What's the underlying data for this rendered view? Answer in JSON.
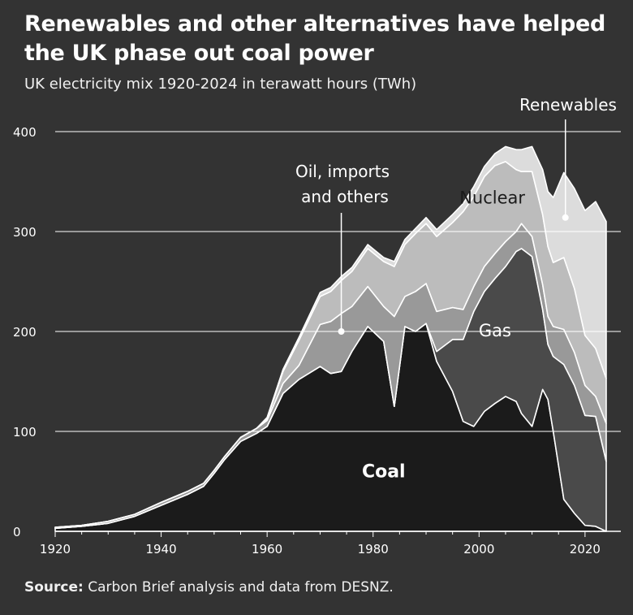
{
  "title_line1": "Renewables and other alternatives have helped",
  "title_line2": "the UK phase out coal power",
  "subtitle": "UK electricity mix 1920-2024 in terawatt hours (TWh)",
  "source_label": "Source:",
  "source_text": " Carbon Brief analysis and data from DESNZ.",
  "colors": {
    "background": "#333333",
    "coal": "#1b1b1b",
    "gas": "#4a4a4a",
    "oil_imports_others": "#999999",
    "nuclear": "#bcbcbc",
    "renewables": "#dcdcdc",
    "grid": "#ffffff",
    "text": "#ffffff"
  },
  "chart_data": {
    "type": "area",
    "stacked": true,
    "title": "Renewables and other alternatives have helped the UK phase out coal power",
    "subtitle": "UK electricity mix 1920-2024 in terawatt hours (TWh)",
    "xlabel": "",
    "ylabel": "",
    "xlim": [
      1920,
      2024
    ],
    "ylim": [
      0,
      400
    ],
    "x_ticks": [
      1920,
      1940,
      1960,
      1980,
      2000,
      2020
    ],
    "y_ticks": [
      0,
      100,
      200,
      300,
      400
    ],
    "grid": "horizontal",
    "legend": "inline labels",
    "x": [
      1920,
      1925,
      1930,
      1935,
      1940,
      1945,
      1948,
      1950,
      1952,
      1955,
      1958,
      1960,
      1963,
      1966,
      1970,
      1972,
      1974,
      1976,
      1979,
      1982,
      1984,
      1986,
      1988,
      1990,
      1992,
      1995,
      1997,
      1999,
      2001,
      2003,
      2005,
      2007,
      2008,
      2010,
      2012,
      2013,
      2014,
      2016,
      2018,
      2020,
      2022,
      2024
    ],
    "series": [
      {
        "name": "Coal",
        "values": [
          3,
          5,
          8,
          15,
          26,
          37,
          45,
          58,
          72,
          90,
          98,
          105,
          138,
          152,
          165,
          158,
          160,
          180,
          205,
          190,
          125,
          205,
          200,
          208,
          170,
          140,
          110,
          105,
          120,
          128,
          135,
          130,
          118,
          105,
          142,
          132,
          100,
          32,
          18,
          6,
          5,
          0
        ]
      },
      {
        "name": "Gas",
        "values": [
          0,
          0,
          0,
          0,
          0,
          0,
          0,
          0,
          0,
          0,
          0,
          0,
          0,
          0,
          0,
          0,
          0,
          0,
          0,
          0,
          0,
          0,
          0,
          0,
          10,
          52,
          82,
          115,
          120,
          125,
          130,
          150,
          165,
          170,
          80,
          55,
          75,
          135,
          128,
          110,
          110,
          70
        ]
      },
      {
        "name": "Oil, imports and others",
        "values": [
          1,
          1,
          2,
          2,
          3,
          3,
          3,
          3,
          3,
          4,
          5,
          6,
          10,
          14,
          42,
          52,
          58,
          45,
          40,
          35,
          90,
          30,
          40,
          40,
          40,
          32,
          30,
          25,
          25,
          25,
          25,
          20,
          25,
          20,
          25,
          28,
          30,
          35,
          33,
          30,
          20,
          38
        ]
      },
      {
        "name": "Nuclear",
        "values": [
          0,
          0,
          0,
          0,
          0,
          0,
          0,
          0,
          0,
          0,
          0,
          2,
          12,
          25,
          28,
          30,
          33,
          35,
          38,
          45,
          50,
          52,
          58,
          60,
          75,
          85,
          98,
          90,
          90,
          88,
          80,
          62,
          52,
          65,
          70,
          70,
          64,
          72,
          64,
          50,
          48,
          45
        ]
      },
      {
        "name": "Renewables",
        "values": [
          0,
          0,
          0,
          0,
          0,
          0,
          0,
          0,
          0,
          0,
          0,
          1,
          2,
          3,
          4,
          4,
          4,
          4,
          4,
          4,
          5,
          5,
          5,
          6,
          7,
          8,
          8,
          10,
          10,
          12,
          15,
          20,
          22,
          25,
          45,
          55,
          65,
          85,
          100,
          125,
          147,
          157
        ]
      }
    ],
    "annotations": [
      {
        "text": "Coal"
      },
      {
        "text": "Gas"
      },
      {
        "text": "Nuclear"
      },
      {
        "text_line1": "Oil, imports",
        "text_line2": "and others"
      },
      {
        "text": "Renewables"
      }
    ]
  }
}
